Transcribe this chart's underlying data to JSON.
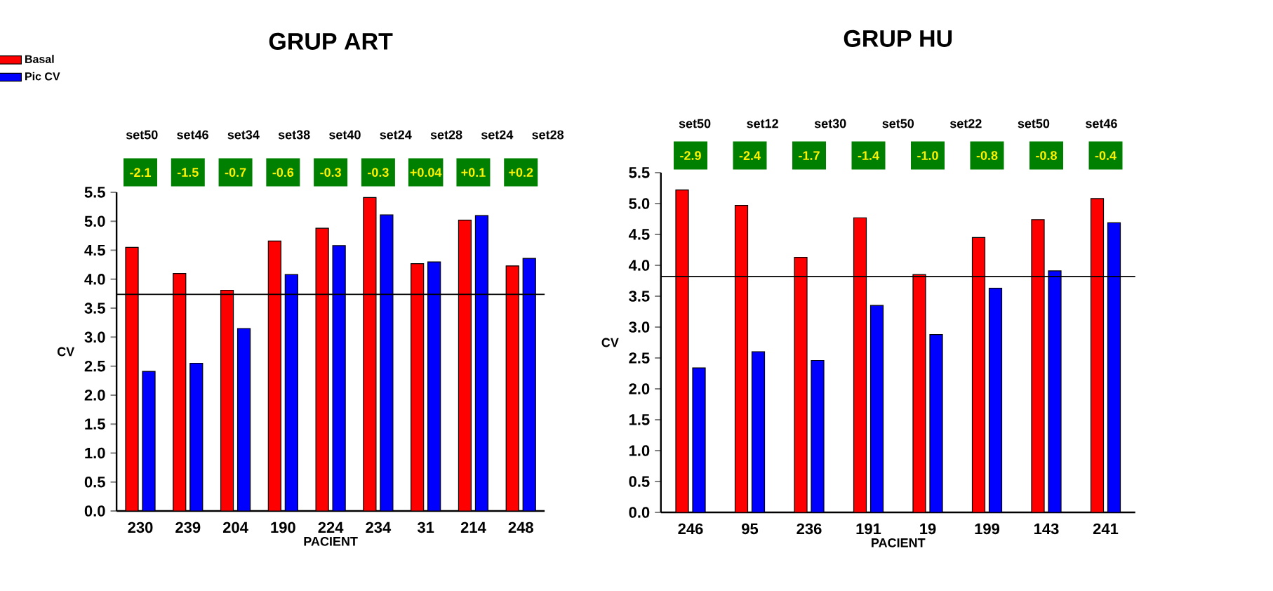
{
  "chart_data": [
    {
      "type": "bar",
      "title": "GRUP ART",
      "xlabel": "PACIENT",
      "ylabel": "CV",
      "legend": "top left",
      "categories": [
        "230",
        "239",
        "204",
        "190",
        "224",
        "234",
        "31",
        "214",
        "248"
      ],
      "series": [
        {
          "name": "Basal",
          "color": "#ff0000",
          "values": [
            4.55,
            4.1,
            3.81,
            4.66,
            4.88,
            5.41,
            4.27,
            5.02,
            4.23
          ]
        },
        {
          "name": "Pic  CV",
          "color": "#0000ff",
          "values": [
            2.41,
            2.55,
            3.15,
            4.08,
            4.58,
            5.11,
            4.3,
            5.1,
            4.36
          ]
        }
      ],
      "ylim": [
        0,
        5.5
      ],
      "yticks": [
        {
          "value": 0,
          "label": "0.0"
        },
        {
          "value": 0.5,
          "label": "0.5"
        },
        {
          "value": 1,
          "label": "1.0"
        },
        {
          "value": 1.5,
          "label": "1.5"
        },
        {
          "value": 2,
          "label": "2.0"
        },
        {
          "value": 2.5,
          "label": "2.5"
        },
        {
          "value": 3,
          "label": "3.0"
        },
        {
          "value": 3.5,
          "label": "3.5"
        },
        {
          "value": 4,
          "label": "4.0"
        },
        {
          "value": 4.5,
          "label": "4.5"
        },
        {
          "value": 5,
          "label": "5.0"
        },
        {
          "value": 5.5,
          "label": "5.5"
        }
      ],
      "ref_lines": [
        {
          "axis": "y",
          "value": 3.74,
          "color": "#000000"
        }
      ],
      "annotations": [
        "set50",
        "set46",
        "set34",
        "set38",
        "set40",
        "set24",
        "set28",
        "set24",
        "set28",
        "-2.1",
        "-1.5",
        "-0.7",
        "-0.6",
        "-0.3",
        "-0.3",
        "+0.04",
        "+0.1",
        "+0.2"
      ]
    },
    {
      "type": "bar",
      "title": "GRUP HU",
      "xlabel": "PACIENT",
      "ylabel": "CV",
      "categories": [
        "246",
        "95",
        "236",
        "191",
        "19",
        "199",
        "143",
        "241"
      ],
      "series": [
        {
          "color": "#ff0000",
          "values": [
            5.22,
            4.97,
            4.13,
            4.77,
            3.85,
            4.45,
            4.74,
            5.08
          ]
        },
        {
          "color": "#0000ff",
          "values": [
            2.34,
            2.6,
            2.46,
            3.35,
            2.88,
            3.63,
            3.91,
            4.69
          ]
        }
      ],
      "ylim": [
        0,
        5.5
      ],
      "yticks": [
        {
          "value": 0,
          "label": "0.0"
        },
        {
          "value": 0.5,
          "label": "0.5"
        },
        {
          "value": 1,
          "label": "1.0"
        },
        {
          "value": 1.5,
          "label": "1.5"
        },
        {
          "value": 2,
          "label": "2.0"
        },
        {
          "value": 2.5,
          "label": "2.5"
        },
        {
          "value": 3,
          "label": "3.0"
        },
        {
          "value": 3.5,
          "label": "3.5"
        },
        {
          "value": 4,
          "label": "4.0"
        },
        {
          "value": 4.5,
          "label": "4.5"
        },
        {
          "value": 5,
          "label": "5.0"
        },
        {
          "value": 5.5,
          "label": "5.5"
        }
      ],
      "ref_lines": [
        {
          "axis": "y",
          "value": 3.82,
          "color": "#000000"
        }
      ],
      "annotations": [
        "set50",
        "set12",
        "set30",
        "set50",
        "set22",
        "set50",
        "set46",
        "-2.9",
        "-2.4",
        "-1.7",
        "-1.4",
        "-1.0",
        "-0.8",
        "-0.8",
        "-0.4"
      ]
    }
  ]
}
